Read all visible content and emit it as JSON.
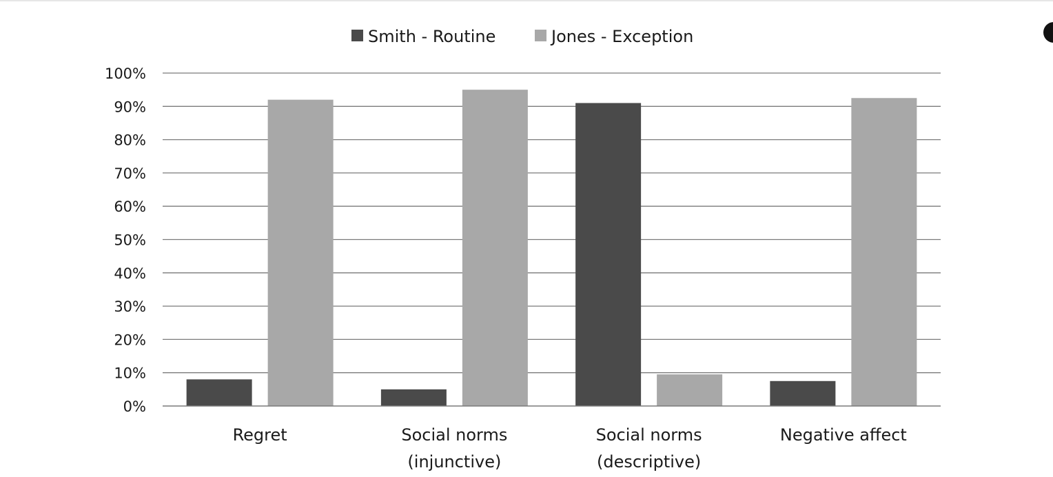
{
  "chart_data": {
    "type": "bar",
    "categories": [
      [
        "Regret"
      ],
      [
        "Social norms",
        "(injunctive)"
      ],
      [
        "Social norms",
        "(descriptive)"
      ],
      [
        "Negative affect"
      ]
    ],
    "series": [
      {
        "name": "Smith - Routine",
        "color": "#4a4a4a",
        "values": [
          8,
          5,
          91,
          7.5
        ]
      },
      {
        "name": "Jones - Exception",
        "color": "#a8a8a8",
        "values": [
          92,
          95,
          9.5,
          92.5
        ]
      }
    ],
    "ylim": [
      0,
      100
    ],
    "yticks": [
      0,
      10,
      20,
      30,
      40,
      50,
      60,
      70,
      80,
      90,
      100
    ],
    "ytick_labels": [
      "0%",
      "10%",
      "20%",
      "30%",
      "40%",
      "50%",
      "60%",
      "70%",
      "80%",
      "90%",
      "100%"
    ],
    "grid": true,
    "legend_position": "top-center",
    "title": "",
    "xlabel": "",
    "ylabel": ""
  }
}
